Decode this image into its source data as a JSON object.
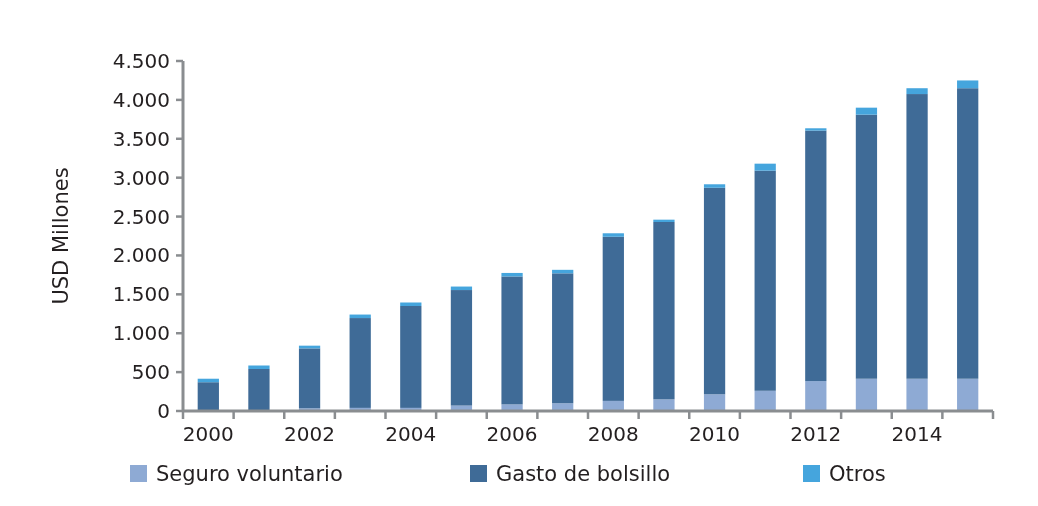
{
  "chart_data": {
    "type": "bar",
    "stacked": true,
    "ylabel": "USD Millones",
    "categories": [
      "2000",
      null,
      "2002",
      null,
      "2004",
      null,
      "2006",
      null,
      "2008",
      null,
      "2010",
      null,
      "2012",
      null,
      "2014",
      null
    ],
    "series": [
      {
        "name": "Seguro voluntario",
        "color": "#8eaad4",
        "values": [
          10,
          10,
          35,
          40,
          40,
          70,
          85,
          100,
          130,
          150,
          215,
          260,
          385,
          415,
          415,
          415
        ]
      },
      {
        "name": "Gasto de bolsillo",
        "color": "#3f6b97",
        "values": [
          360,
          530,
          770,
          1155,
          1310,
          1485,
          1645,
          1670,
          2110,
          2280,
          2655,
          2830,
          3220,
          3395,
          3660,
          3735
        ]
      },
      {
        "name": "Otros",
        "color": "#45a5dd",
        "values": [
          45,
          45,
          35,
          45,
          45,
          45,
          45,
          45,
          45,
          30,
          45,
          90,
          30,
          90,
          75,
          100
        ]
      }
    ],
    "ylim": [
      0,
      4500
    ],
    "yticks": [
      0,
      500,
      {
        "value": 1000,
        "label": "1.000"
      },
      {
        "value": 1500,
        "label": "1.500"
      },
      {
        "value": 2000,
        "label": "2.000"
      },
      {
        "value": 2500,
        "label": "2.500"
      },
      {
        "value": 3000,
        "label": "3.000"
      },
      {
        "value": 3500,
        "label": "3.500"
      },
      {
        "value": 4000,
        "label": "4.000"
      },
      {
        "value": 4500,
        "label": "4.500"
      }
    ],
    "grid": false,
    "legend": "bottom"
  }
}
